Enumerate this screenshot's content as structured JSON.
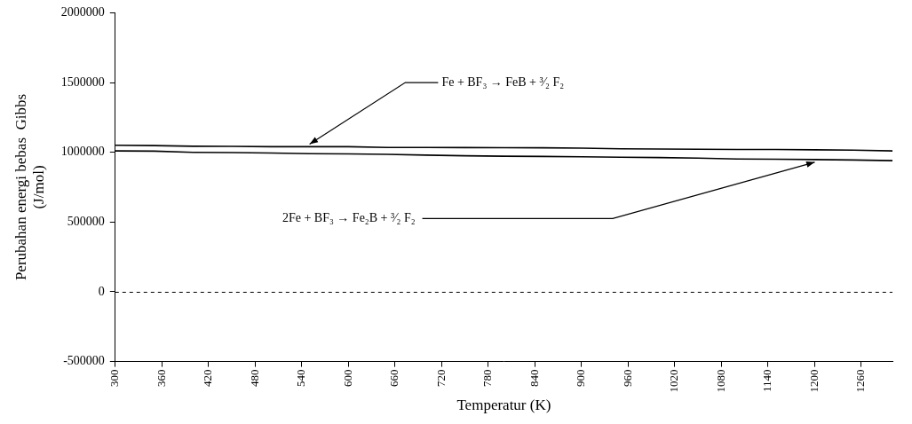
{
  "chart_data": {
    "type": "line",
    "x_label": "Temperatur (K)",
    "y_label": [
      "Perubahan energi bebas  Gibbs",
      "(J/mol)"
    ],
    "x": [
      300,
      350,
      400,
      450,
      500,
      550,
      600,
      650,
      700,
      750,
      800,
      850,
      900,
      950,
      1000,
      1050,
      1100,
      1150,
      1200,
      1250,
      1300
    ],
    "series": [
      {
        "name": "Fe + BF₃ → FeB + ³⁄₂ F₂",
        "color": "#000000",
        "line_style": "solid",
        "values": [
          1050000,
          1048000,
          1043000,
          1042000,
          1040000,
          1040000,
          1040000,
          1035000,
          1035000,
          1034000,
          1033000,
          1032000,
          1030000,
          1025000,
          1023000,
          1022000,
          1020000,
          1020000,
          1018000,
          1015000,
          1010000
        ]
      },
      {
        "name": "2Fe + BF₃ → Fe₂B + ³⁄₂ F₂",
        "color": "#000000",
        "line_style": "solid",
        "values": [
          1010000,
          1008000,
          1000000,
          998000,
          995000,
          990000,
          988000,
          985000,
          980000,
          975000,
          972000,
          970000,
          968000,
          965000,
          962000,
          958000,
          952000,
          950000,
          948000,
          945000,
          940000
        ]
      }
    ],
    "xlim": [
      300,
      1300
    ],
    "xticks": [
      300,
      360,
      420,
      480,
      540,
      600,
      660,
      720,
      780,
      840,
      900,
      960,
      1020,
      1080,
      1140,
      1200,
      1260
    ],
    "ylim": [
      -500000,
      2000000
    ],
    "yticks": [
      -500000,
      0,
      500000,
      1000000,
      1500000,
      2000000
    ],
    "grid": false
  }
}
